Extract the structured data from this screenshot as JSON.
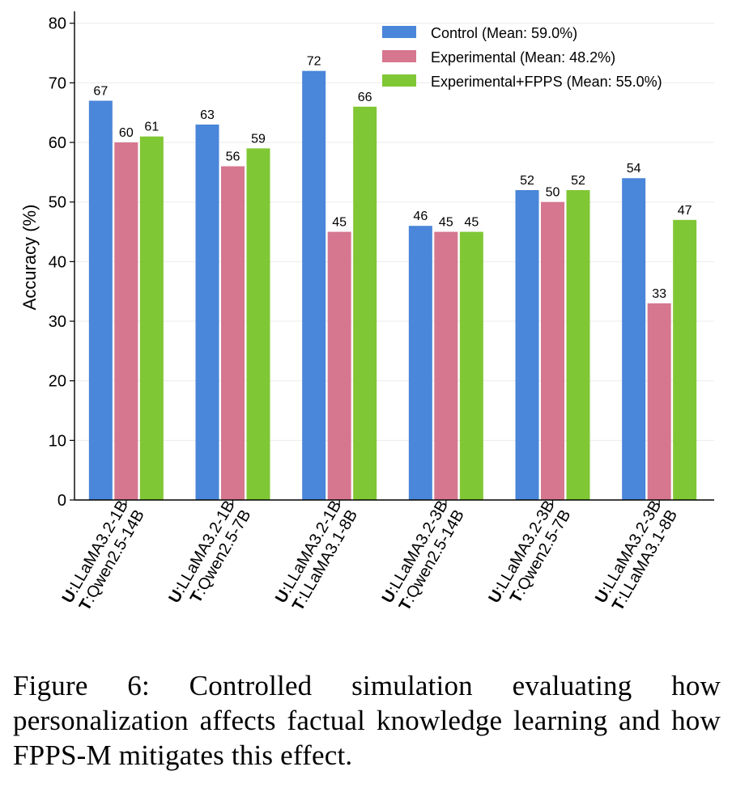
{
  "chart_data": {
    "type": "bar",
    "ylabel": "Accuracy (%)",
    "ylim": [
      0,
      82
    ],
    "yticks": [
      0,
      10,
      20,
      30,
      40,
      50,
      60,
      70,
      80
    ],
    "grid": true,
    "legend_position": "top-right",
    "categories": [
      {
        "u_prefix": "U",
        "u_model": ":LLaMA3.2-1B",
        "t_prefix": "T",
        "t_model": ":Qwen2.5-14B"
      },
      {
        "u_prefix": "U",
        "u_model": ":LLaMA3.2-1B",
        "t_prefix": "T",
        "t_model": ":Qwen2.5-7B"
      },
      {
        "u_prefix": "U",
        "u_model": ":LLaMA3.2-1B",
        "t_prefix": "T",
        "t_model": ":LLaMA3.1-8B"
      },
      {
        "u_prefix": "U",
        "u_model": ":LLaMA3.2-3B",
        "t_prefix": "T",
        "t_model": ":Qwen2.5-14B"
      },
      {
        "u_prefix": "U",
        "u_model": ":LLaMA3.2-3B",
        "t_prefix": "T",
        "t_model": ":Qwen2.5-7B"
      },
      {
        "u_prefix": "U",
        "u_model": ":LLaMA3.2-3B",
        "t_prefix": "T",
        "t_model": ":LLaMA3.1-8B"
      }
    ],
    "series": [
      {
        "name": "Control (Mean: 59.0%)",
        "color": "#4a86d9",
        "values": [
          67,
          63,
          72,
          46,
          52,
          54
        ]
      },
      {
        "name": "Experimental (Mean: 48.2%)",
        "color": "#d6768f",
        "values": [
          60,
          56,
          45,
          45,
          50,
          33
        ]
      },
      {
        "name": "Experimental+FPPS (Mean: 55.0%)",
        "color": "#80c735",
        "values": [
          61,
          59,
          66,
          45,
          52,
          47
        ]
      }
    ]
  },
  "caption": "Figure 6: Controlled simulation evaluating how personalization affects factual knowledge learning and how FPPS-M mitigates this effect."
}
